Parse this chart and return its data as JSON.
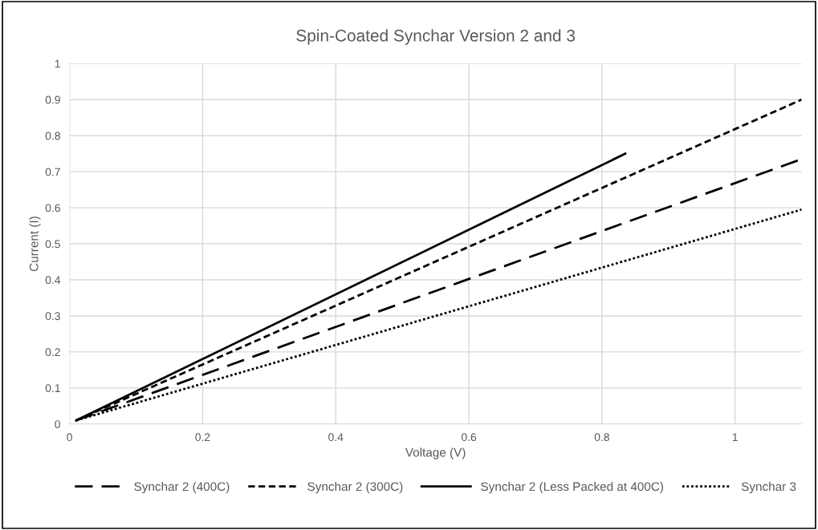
{
  "chart_data": {
    "type": "line",
    "title": "Spin-Coated Synchar Version 2 and 3",
    "xlabel": "Voltage (V)",
    "ylabel": "Current (I)",
    "series": [
      {
        "name": "Synchar 2 (400C)",
        "color": "#000000",
        "line_style": "dashed",
        "x": [
          0.01,
          1.1
        ],
        "values": [
          0.01,
          0.735
        ]
      },
      {
        "name": "Synchar 2 (300C)",
        "color": "#000000",
        "line_style": "dashed",
        "x": [
          0.01,
          1.1
        ],
        "values": [
          0.01,
          0.9
        ]
      },
      {
        "name": "Synchar 2 (Less Packed at 400C)",
        "color": "#000000",
        "line_style": "solid",
        "x": [
          0.01,
          0.835
        ],
        "values": [
          0.01,
          0.75
        ]
      },
      {
        "name": "Synchar 3",
        "color": "#000000",
        "line_style": "dotted",
        "x": [
          0.01,
          1.1
        ],
        "values": [
          0.01,
          0.595
        ]
      }
    ],
    "xlim": [
      0,
      1.1
    ],
    "xticks": [
      0,
      0.2,
      0.4,
      0.6,
      0.8,
      1
    ],
    "ylim": [
      0,
      1
    ],
    "yticks": [
      0,
      0.1,
      0.2,
      0.3,
      0.4,
      0.5,
      0.6,
      0.7,
      0.8,
      0.9,
      1
    ],
    "grid": true,
    "legend": "bottom",
    "marker": "none"
  }
}
